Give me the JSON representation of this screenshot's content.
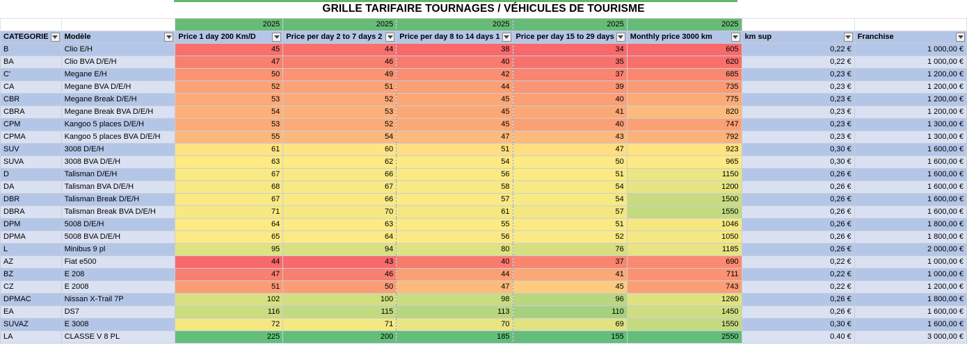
{
  "title": "GRILLE TARIFAIRE TOURNAGES / VÉHICULES DE TOURISME",
  "year_row": [
    "2025",
    "2025",
    "2025",
    "2025",
    "2025"
  ],
  "headers": [
    "CATEGORIE",
    "Modèle",
    "Price 1 day 200 Km/D",
    "Price per day 2 to 7 days 2",
    "Price per day 8 to 14 days 1",
    "Price per day 15 to 29 days",
    "Monthly price 3000 km",
    "km sup",
    "Franchise"
  ],
  "rows": [
    [
      "B",
      "Clio E/H",
      "45",
      "44",
      "38",
      "34",
      "605",
      "0,22 €",
      "1 000,00 €"
    ],
    [
      "BA",
      "Clio BVA D/E/H",
      "47",
      "46",
      "40",
      "35",
      "620",
      "0,22 €",
      "1 000,00 €"
    ],
    [
      "C'",
      "Megane E/H",
      "50",
      "49",
      "42",
      "37",
      "685",
      "0,23 €",
      "1 200,00 €"
    ],
    [
      "CA",
      "Megane BVA D/E/H",
      "52",
      "51",
      "44",
      "39",
      "735",
      "0,23 €",
      "1 200,00 €"
    ],
    [
      "CBR",
      "Megane Break D/E/H",
      "53",
      "52",
      "45",
      "40",
      "775",
      "0,23 €",
      "1 200,00 €"
    ],
    [
      "CBRA",
      "Megane Break BVA D/E/H",
      "54",
      "53",
      "45",
      "41",
      "820",
      "0,23 €",
      "1 200,00 €"
    ],
    [
      "CPM",
      "Kangoo 5 places D/E/H",
      "53",
      "52",
      "45",
      "40",
      "747",
      "0,23 €",
      "1 300,00 €"
    ],
    [
      "CPMA",
      "Kangoo 5 places BVA D/E/H",
      "55",
      "54",
      "47",
      "43",
      "792",
      "0,23 €",
      "1 300,00 €"
    ],
    [
      "SUV",
      "3008 D/E/H",
      "61",
      "60",
      "51",
      "47",
      "923",
      "0,30 €",
      "1 600,00 €"
    ],
    [
      "SUVA",
      "3008 BVA D/E/H",
      "63",
      "62",
      "54",
      "50",
      "965",
      "0,30 €",
      "1 600,00 €"
    ],
    [
      "D",
      "Talisman D/E/H",
      "67",
      "66",
      "56",
      "51",
      "1150",
      "0,26 €",
      "1 600,00 €"
    ],
    [
      "DA",
      "Talisman BVA D/E/H",
      "68",
      "67",
      "58",
      "54",
      "1200",
      "0,26 €",
      "1 600,00 €"
    ],
    [
      "DBR",
      "Talisman Break D/E/H",
      "67",
      "66",
      "57",
      "54",
      "1500",
      "0,26 €",
      "1 600,00 €"
    ],
    [
      "DBRA",
      "Talisman Break BVA D/E/H",
      "71",
      "70",
      "61",
      "57",
      "1550",
      "0,26 €",
      "1 600,00 €"
    ],
    [
      "DPM",
      "5008 D/E/H",
      "64",
      "63",
      "55",
      "51",
      "1046",
      "0,26 €",
      "1 800,00 €"
    ],
    [
      "DPMA",
      "5008 BVA D/E/H",
      "65",
      "64",
      "56",
      "52",
      "1050",
      "0,26 €",
      "1 800,00 €"
    ],
    [
      "L",
      "Minibus 9 pl",
      "95",
      "94",
      "80",
      "76",
      "1185",
      "0,26 €",
      "2 000,00 €"
    ],
    [
      "AZ",
      "Fiat e500",
      "44",
      "43",
      "40",
      "37",
      "690",
      "0,22 €",
      "1 000,00 €"
    ],
    [
      "BZ",
      "E 208",
      "47",
      "46",
      "44",
      "41",
      "711",
      "0,22 €",
      "1 000,00 €"
    ],
    [
      "CZ",
      "E 2008",
      "51",
      "50",
      "47",
      "45",
      "743",
      "0,22 €",
      "1 200,00 €"
    ],
    [
      "DPMAC",
      "Nissan X-Trail 7P",
      "102",
      "100",
      "98",
      "96",
      "1260",
      "0,26 €",
      "1 800,00 €"
    ],
    [
      "EA",
      "DS7",
      "116",
      "115",
      "113",
      "110",
      "1450",
      "0,26 €",
      "1 600,00 €"
    ],
    [
      "SUVAZ",
      "E 3008",
      "72",
      "71",
      "70",
      "69",
      "1550",
      "0,30 €",
      "1 600,00 €"
    ],
    [
      "LA",
      "CLASSE V 8 PL",
      "225",
      "200",
      "185",
      "155",
      "2550",
      "0.40 €",
      "3 000,00 €"
    ]
  ],
  "heat_colors": {
    "low": "#f8696b",
    "mid": "#ffeb84",
    "high": "#63be7b"
  }
}
